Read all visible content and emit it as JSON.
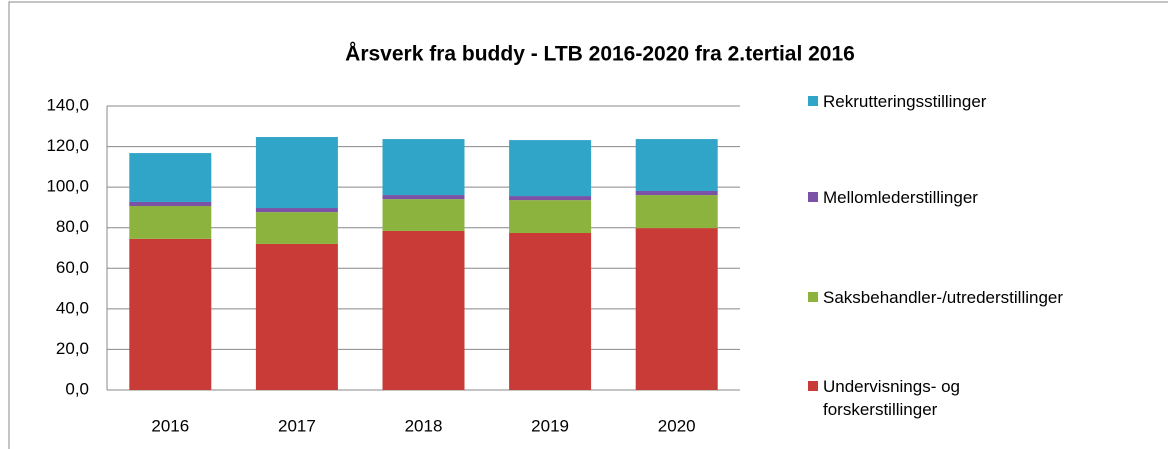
{
  "chart_data": {
    "type": "stacked_bar",
    "title": "Årsverk fra buddy - LTB 2016-2020 fra 2.tertial 2016",
    "categories": [
      "2016",
      "2017",
      "2018",
      "2019",
      "2020"
    ],
    "series": [
      {
        "name": "Undervisnings- og forskerstillinger",
        "color": "#c93b36",
        "values": [
          74.5,
          72.0,
          78.4,
          77.4,
          79.8
        ]
      },
      {
        "name": "Saksbehandler-/utrederstillinger",
        "color": "#8db33f",
        "values": [
          16.2,
          15.7,
          15.7,
          16.2,
          16.3
        ]
      },
      {
        "name": "Mellomlederstillinger",
        "color": "#7b52a6",
        "values": [
          2.0,
          2.0,
          2.0,
          2.0,
          2.0
        ]
      },
      {
        "name": "Rekrutteringsstillinger",
        "color": "#31a5c8",
        "values": [
          24.1,
          35.0,
          27.6,
          27.6,
          25.6
        ]
      }
    ],
    "ylim": [
      0,
      140
    ],
    "yticks": [
      {
        "value": 0,
        "label": "0,0"
      },
      {
        "value": 20,
        "label": "20,0"
      },
      {
        "value": 40,
        "label": "40,0"
      },
      {
        "value": 60,
        "label": "60,0"
      },
      {
        "value": 80,
        "label": "80,0"
      },
      {
        "value": 100,
        "label": "100,0"
      },
      {
        "value": 120,
        "label": "120,0"
      },
      {
        "value": 140,
        "label": "140,0"
      }
    ],
    "grid": true,
    "legend": "right"
  }
}
